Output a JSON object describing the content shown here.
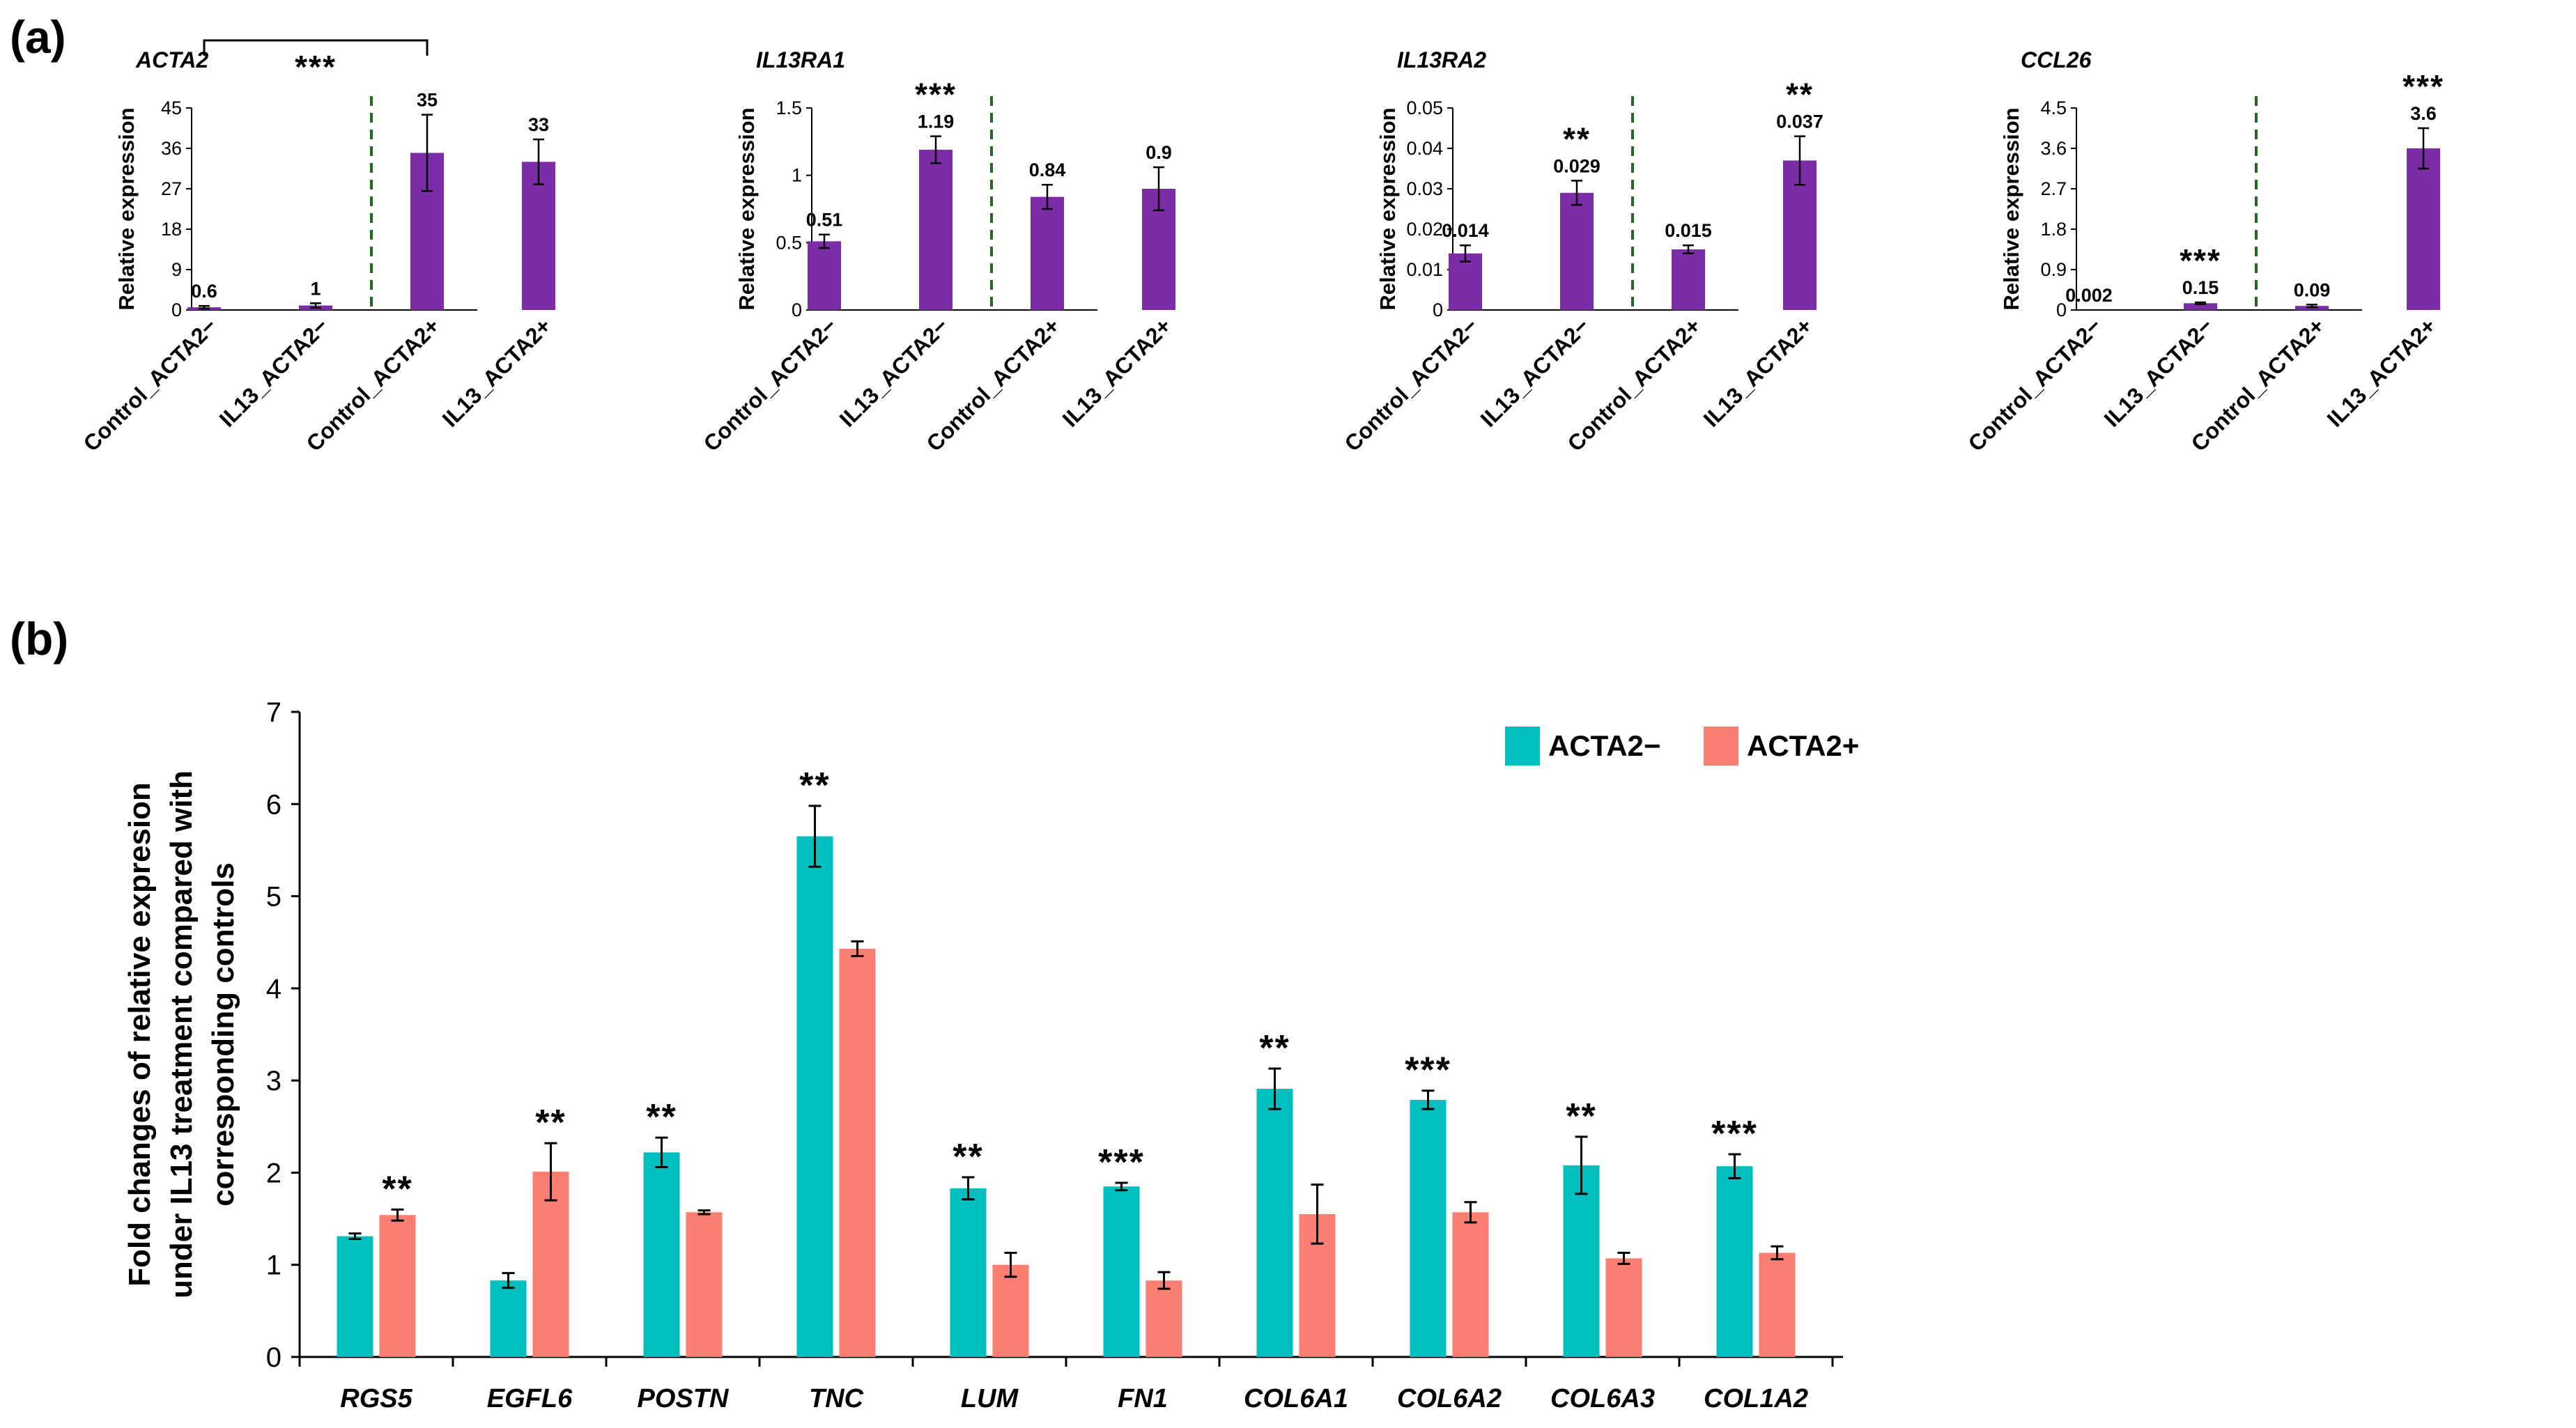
{
  "panel_a_label": "(a)",
  "panel_b_label": "(b)",
  "chart_data": [
    {
      "type": "bar",
      "title": "ACTA2",
      "ylabel": "Relative expression",
      "categories": [
        "Control_ACTA2−",
        "IL13_ACTA2−",
        "Control_ACTA2+",
        "IL13_ACTA2+"
      ],
      "values": [
        0.6,
        1,
        35,
        33
      ],
      "errors": [
        0.3,
        0.5,
        8.5,
        5
      ],
      "value_labels": [
        "0.6",
        "1",
        "35",
        "33"
      ],
      "yticks": [
        "0",
        "9",
        "18",
        "27",
        "36",
        "45"
      ],
      "ylim": [
        0,
        45
      ],
      "significance": [
        {
          "text": "***",
          "bracket": [
            0,
            2
          ]
        }
      ],
      "divider_after_index": 1,
      "color": "#7B2CA6"
    },
    {
      "type": "bar",
      "title": "IL13RA1",
      "ylabel": "Relative expression",
      "categories": [
        "Control_ACTA2−",
        "IL13_ACTA2−",
        "Control_ACTA2+",
        "IL13_ACTA2+"
      ],
      "values": [
        0.51,
        1.19,
        0.84,
        0.9
      ],
      "errors": [
        0.05,
        0.1,
        0.09,
        0.16
      ],
      "value_labels": [
        "0.51",
        "1.19",
        "0.84",
        "0.9"
      ],
      "yticks": [
        "0",
        "0.5",
        "1",
        "1.5"
      ],
      "ylim": [
        0,
        1.5
      ],
      "significance": [
        {
          "text": "***",
          "index": 1
        }
      ],
      "divider_after_index": 1,
      "color": "#7B2CA6"
    },
    {
      "type": "bar",
      "title": "IL13RA2",
      "ylabel": "Relative expression",
      "categories": [
        "Control_ACTA2−",
        "IL13_ACTA2−",
        "Control_ACTA2+",
        "IL13_ACTA2+"
      ],
      "values": [
        0.014,
        0.029,
        0.015,
        0.037
      ],
      "errors": [
        0.002,
        0.003,
        0.001,
        0.006
      ],
      "value_labels": [
        "0.014",
        "0.029",
        "0.015",
        "0.037"
      ],
      "yticks": [
        "0",
        "0.01",
        "0.02",
        "0.03",
        "0.04",
        "0.05"
      ],
      "ylim": [
        0,
        0.05
      ],
      "significance": [
        {
          "text": "**",
          "index": 1
        },
        {
          "text": "**",
          "index": 3
        }
      ],
      "divider_after_index": 1,
      "color": "#7B2CA6"
    },
    {
      "type": "bar",
      "title": "CCL26",
      "ylabel": "Relative expression",
      "categories": [
        "Control_ACTA2−",
        "IL13_ACTA2−",
        "Control_ACTA2+",
        "IL13_ACTA2+"
      ],
      "values": [
        0.002,
        0.15,
        0.09,
        3.6
      ],
      "errors": [
        0.0,
        0.02,
        0.03,
        0.45
      ],
      "value_labels": [
        "0.002",
        "0.15",
        "0.09",
        "3.6"
      ],
      "yticks": [
        "0",
        "0.9",
        "1.8",
        "2.7",
        "3.6",
        "4.5"
      ],
      "ylim": [
        0,
        4.5
      ],
      "significance": [
        {
          "text": "***",
          "index": 1
        },
        {
          "text": "***",
          "index": 3
        }
      ],
      "divider_after_index": 1,
      "color": "#7B2CA6"
    },
    {
      "type": "bar",
      "ylabel_lines": [
        "Fold changes of relative expresion",
        "under IL13 treatment compared with",
        "corresponding controls"
      ],
      "categories": [
        "RGS5",
        "EGFL6",
        "POSTN",
        "TNC",
        "LUM",
        "FN1",
        "COL6A1",
        "COL6A2",
        "COL6A3",
        "COL1A2"
      ],
      "yticks": [
        "0",
        "1",
        "2",
        "3",
        "4",
        "5",
        "6",
        "7"
      ],
      "ylim": [
        0,
        7
      ],
      "legend_position": "top-right",
      "series": [
        {
          "name": "ACTA2−",
          "color": "#00BFBF",
          "values": [
            1.31,
            0.83,
            2.22,
            5.65,
            1.83,
            1.85,
            2.91,
            2.79,
            2.08,
            2.07
          ],
          "errors": [
            0.03,
            0.08,
            0.16,
            0.33,
            0.12,
            0.04,
            0.22,
            0.1,
            0.31,
            0.13
          ]
        },
        {
          "name": "ACTA2+",
          "color": "#FA7F72",
          "values": [
            1.54,
            2.01,
            1.57,
            4.43,
            1.0,
            0.83,
            1.55,
            1.57,
            1.07,
            1.13
          ],
          "errors": [
            0.06,
            0.31,
            0.02,
            0.08,
            0.13,
            0.09,
            0.32,
            0.11,
            0.06,
            0.07
          ]
        }
      ],
      "significance": [
        {
          "text": "**",
          "category": 0,
          "series": 1
        },
        {
          "text": "**",
          "category": 1,
          "series": 1
        },
        {
          "text": "**",
          "category": 2,
          "series": 0
        },
        {
          "text": "**",
          "category": 3,
          "series": 0
        },
        {
          "text": "**",
          "category": 4,
          "series": 0
        },
        {
          "text": "***",
          "category": 5,
          "series": 0
        },
        {
          "text": "**",
          "category": 6,
          "series": 0
        },
        {
          "text": "***",
          "category": 7,
          "series": 0
        },
        {
          "text": "**",
          "category": 8,
          "series": 0
        },
        {
          "text": "***",
          "category": 9,
          "series": 0
        }
      ]
    }
  ]
}
